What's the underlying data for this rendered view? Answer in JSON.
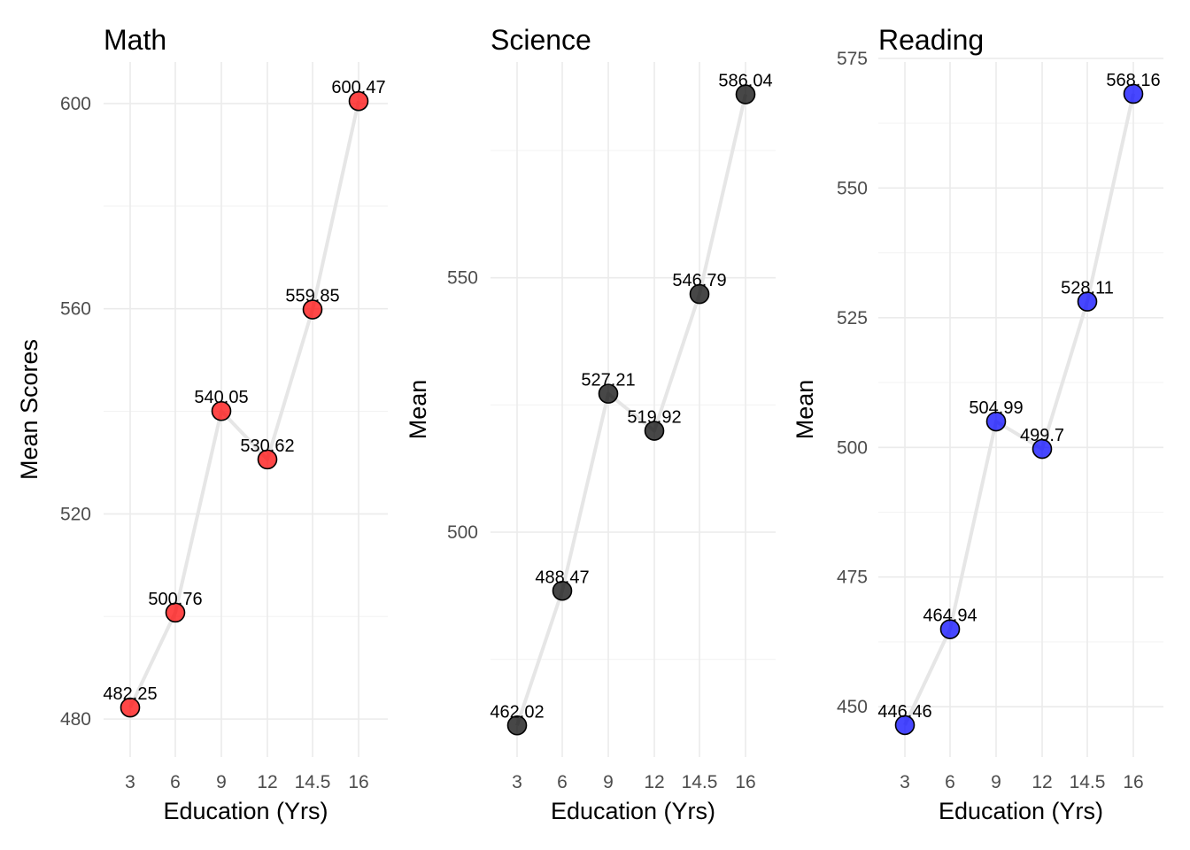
{
  "chart_data": [
    {
      "type": "line",
      "title": "Math",
      "xlabel": "Education (Yrs)",
      "ylabel": "Mean Scores",
      "x_tick_labels": [
        "3",
        "6",
        "9",
        "12",
        "14.5",
        "16"
      ],
      "y_ticks": [
        480,
        520,
        560,
        600
      ],
      "y_tick_labels": [
        "480",
        "520",
        "560",
        "600"
      ],
      "ylim": [
        472.6,
        608.1
      ],
      "grid": true,
      "point_color": "#ff0000",
      "line_color": "#e6e6e6",
      "series": [
        {
          "x": [
            "3",
            "6",
            "9",
            "12",
            "14.5",
            "16"
          ],
          "values": [
            482.25,
            500.76,
            540.05,
            530.62,
            559.85,
            600.47
          ],
          "labels": [
            "482.25",
            "500.76",
            "540.05",
            "530.62",
            "559.85",
            "600.47"
          ]
        }
      ]
    },
    {
      "type": "line",
      "title": "Science",
      "xlabel": "Education (Yrs)",
      "ylabel": "Mean",
      "x_tick_labels": [
        "3",
        "6",
        "9",
        "12",
        "14.5",
        "16"
      ],
      "y_ticks": [
        500,
        550
      ],
      "y_tick_labels": [
        "500",
        "550"
      ],
      "ylim": [
        455.8,
        592.4
      ],
      "grid": true,
      "point_color": "#000000",
      "line_color": "#e6e6e6",
      "series": [
        {
          "x": [
            "3",
            "6",
            "9",
            "12",
            "14.5",
            "16"
          ],
          "values": [
            462.02,
            488.47,
            527.21,
            519.92,
            546.79,
            586.04
          ],
          "labels": [
            "462.02",
            "488.47",
            "527.21",
            "519.92",
            "546.79",
            "586.04"
          ]
        }
      ]
    },
    {
      "type": "line",
      "title": "Reading",
      "xlabel": "Education (Yrs)",
      "ylabel": "Mean",
      "x_tick_labels": [
        "3",
        "6",
        "9",
        "12",
        "14.5",
        "16"
      ],
      "y_ticks": [
        450,
        475,
        500,
        525,
        550,
        575
      ],
      "y_tick_labels": [
        "450",
        "475",
        "500",
        "525",
        "550",
        "575"
      ],
      "ylim": [
        440.3,
        574.3
      ],
      "grid": true,
      "point_color": "#0000ff",
      "line_color": "#e6e6e6",
      "series": [
        {
          "x": [
            "3",
            "6",
            "9",
            "12",
            "14.5",
            "16"
          ],
          "values": [
            446.46,
            464.94,
            504.99,
            499.7,
            528.11,
            568.16
          ],
          "labels": [
            "446.46",
            "464.94",
            "504.99",
            "499.7",
            "528.11",
            "568.16"
          ]
        }
      ]
    }
  ]
}
